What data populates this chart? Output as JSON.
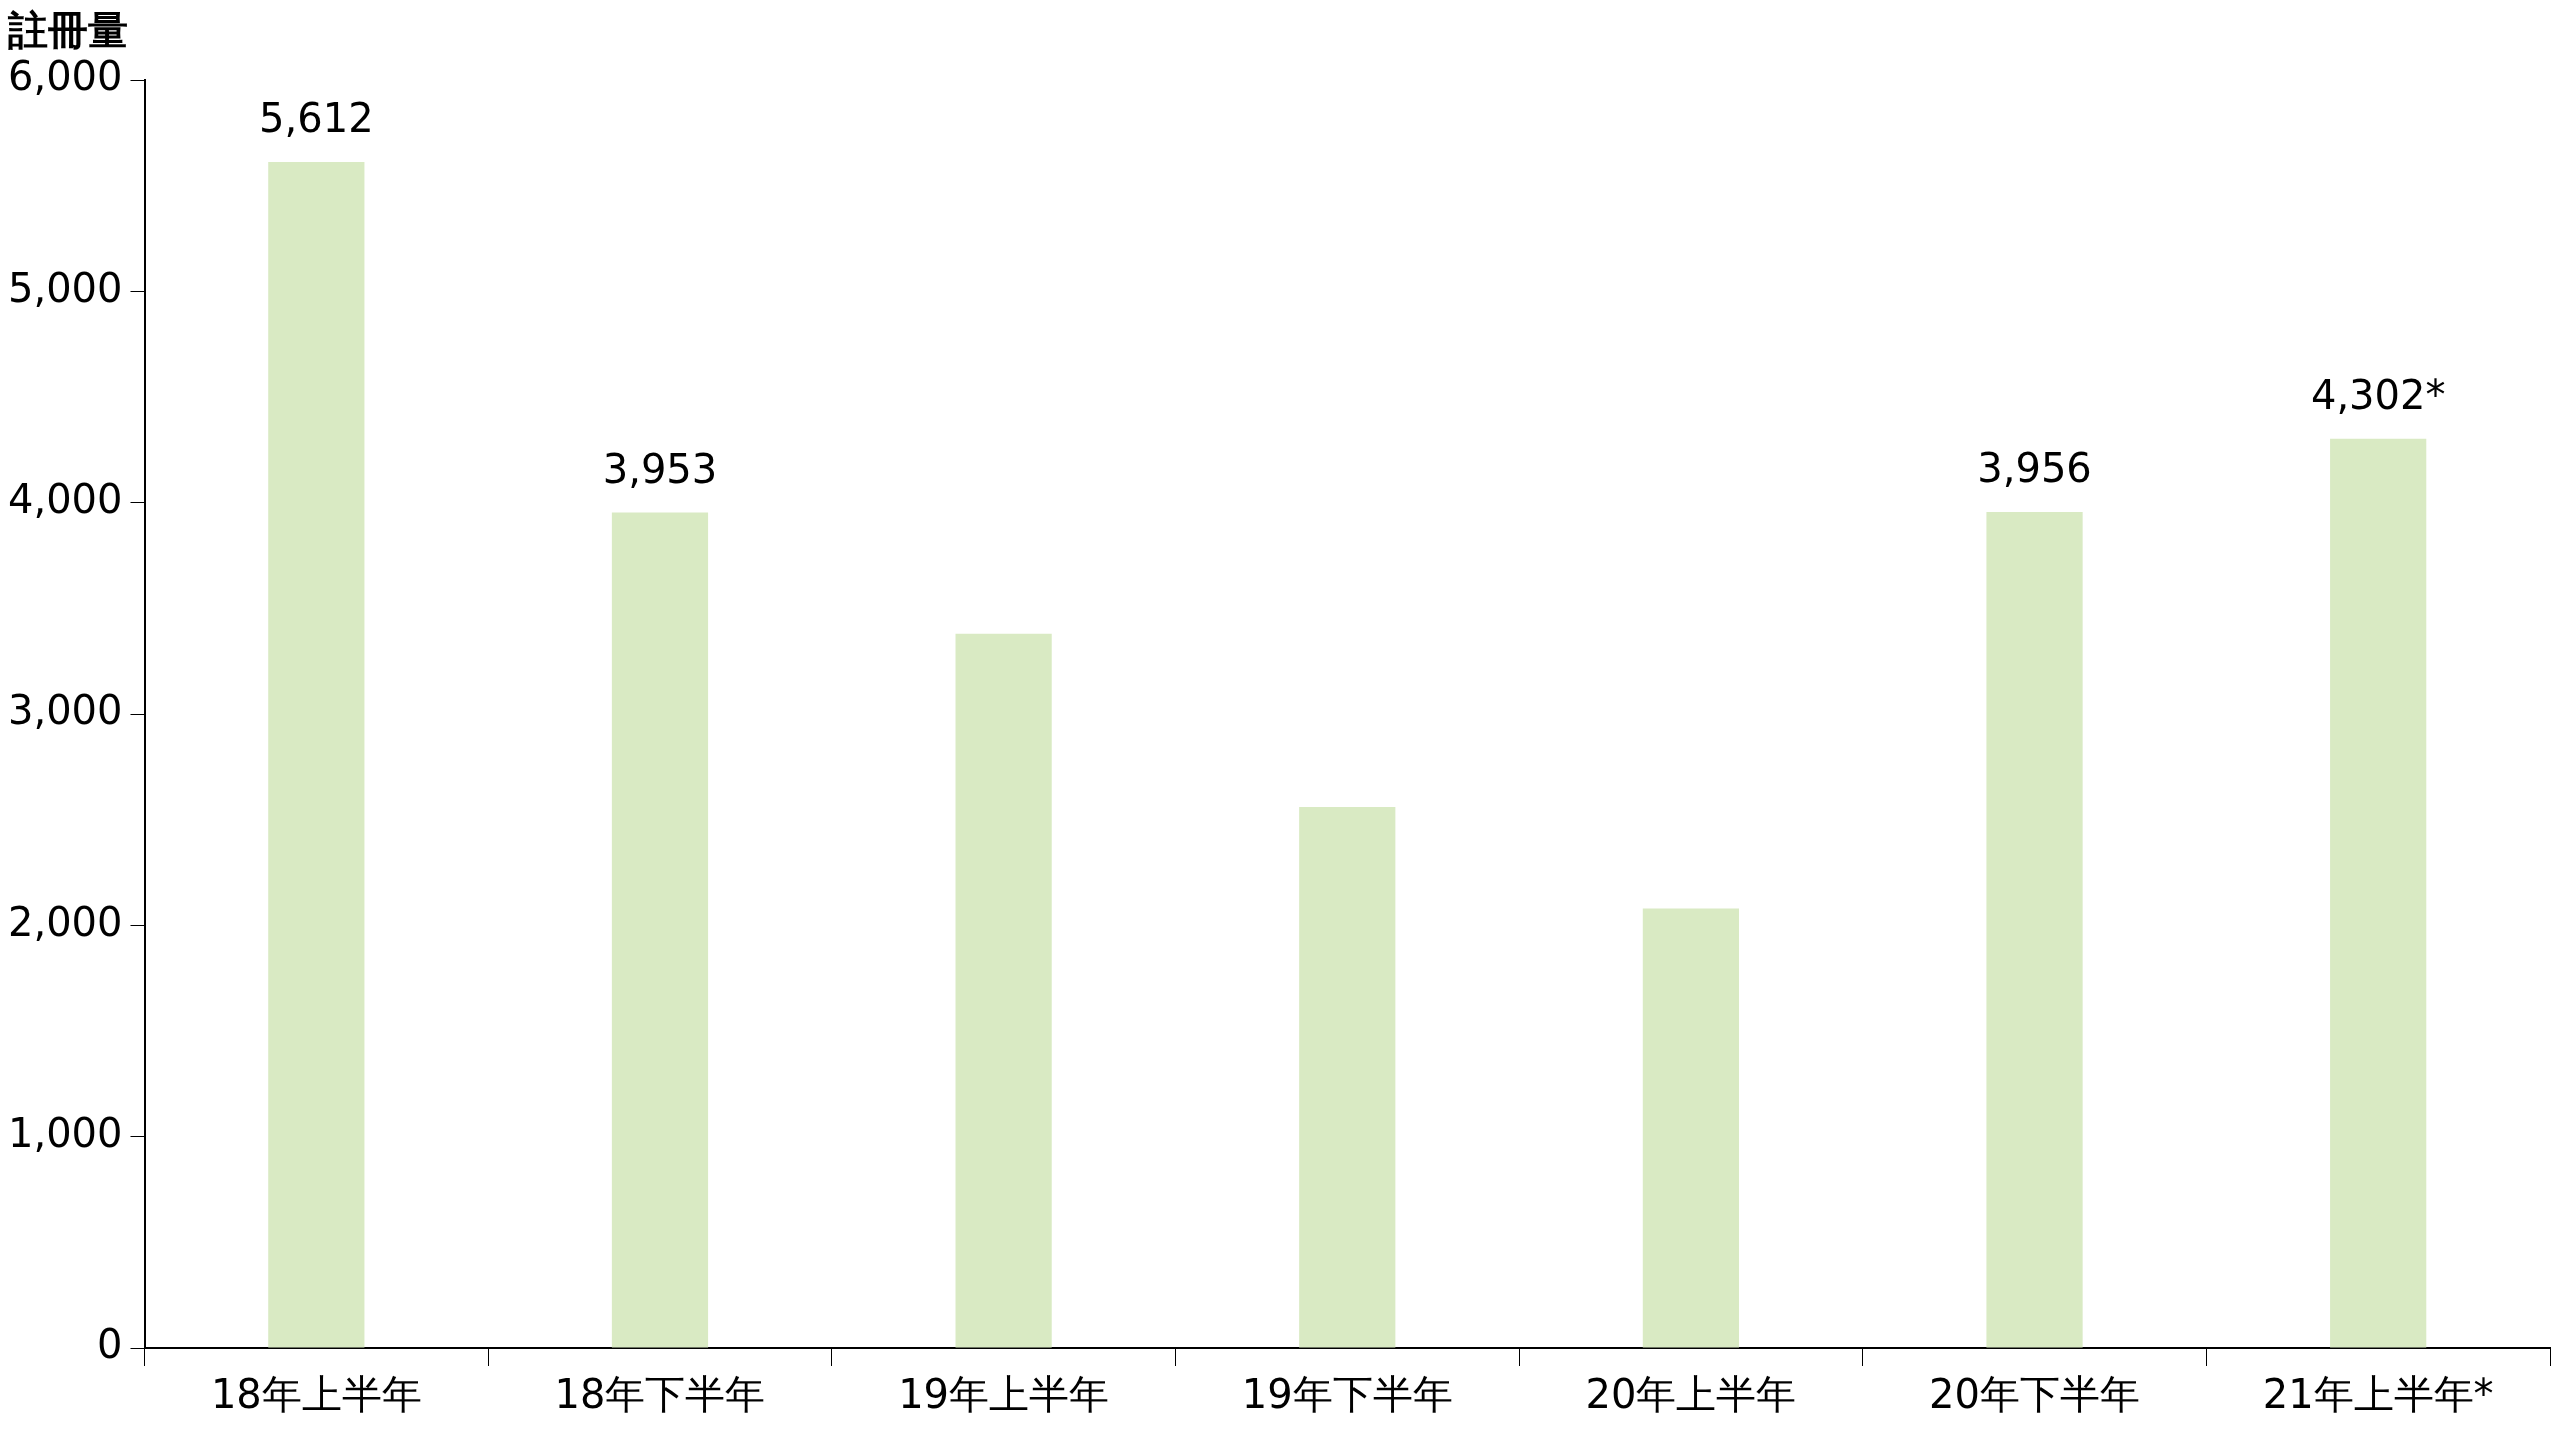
{
  "chart_data": {
    "type": "bar",
    "ylabel": "註冊量",
    "categories": [
      "18年上半年",
      "18年下半年",
      "19年上半年",
      "19年下半年",
      "20年上半年",
      "20年下半年",
      "21年上半年*"
    ],
    "values": [
      5612,
      3953,
      3380,
      2560,
      2080,
      3956,
      4302
    ],
    "value_labels": [
      "5,612",
      "3,953",
      null,
      null,
      null,
      "3,956",
      "4,302*"
    ],
    "color": "#d9eac3",
    "ylim": [
      0,
      6000
    ],
    "yticks": [
      0,
      {
        "value": 1000,
        "label": "1,000"
      },
      {
        "value": 2000,
        "label": "2,000"
      },
      {
        "value": 3000,
        "label": "3,000"
      },
      {
        "value": 4000,
        "label": "4,000"
      },
      {
        "value": 5000,
        "label": "5,000"
      },
      {
        "value": 6000,
        "label": "6,000"
      }
    ],
    "grid": false,
    "legend": false
  }
}
